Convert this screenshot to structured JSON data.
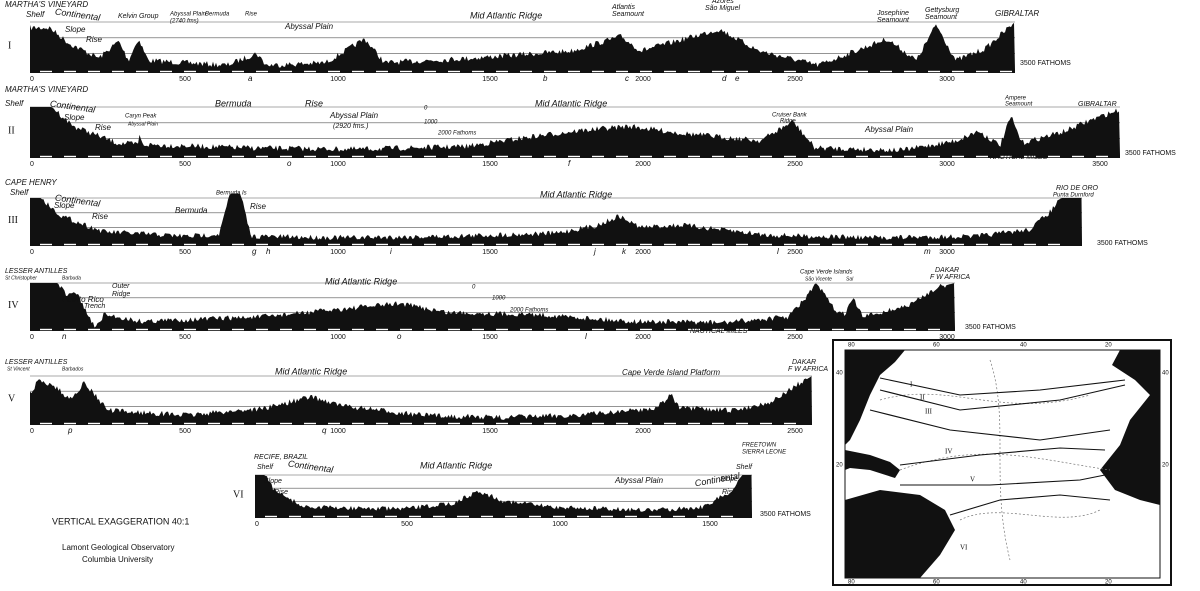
{
  "profiles": [
    {
      "numeral": "I",
      "labels": [
        "MARTHA'S VINEYARD",
        "Shelf",
        "Continental",
        "Slope",
        "Rise",
        "Kelvin Group",
        "Abyssal Plain",
        "(2740 fms)",
        "Bermuda",
        "Rise",
        "Abyssal Plain",
        "Mid Atlantic Ridge",
        "Atlantis",
        "Seamount",
        "Azores",
        "São Miguel",
        "Josephine",
        "Seamount",
        "Gettysburg",
        "Seamount",
        "GIBRALTAR"
      ],
      "scale": [
        "0",
        "500",
        "1000",
        "1500",
        "2000",
        "2500",
        "3000"
      ],
      "letters": [
        "a",
        "b",
        "c",
        "d",
        "e"
      ],
      "depth": "3500 FATHOMS"
    },
    {
      "numeral": "II",
      "labels": [
        "MARTHA'S VINEYARD",
        "Shelf",
        "Continental",
        "Slope",
        "Rise",
        "Caryn Peak",
        "Abyssal Plain",
        "Bermuda",
        "Rise",
        "Abyssal Plain",
        "(2920 fms.)",
        "0",
        "1000",
        "2000 Fathoms",
        "Mid Atlantic Ridge",
        "Cruiser Bank",
        "Ridge",
        "Ampere",
        "Seamount",
        "Abyssal Plain",
        "GIBRALTAR",
        "NAUTICAL MILES"
      ],
      "scale": [
        "0",
        "500",
        "1000",
        "1500",
        "2000",
        "2500",
        "3000",
        "3500"
      ],
      "letters": [
        "o",
        "f"
      ],
      "depth": "3500 FATHOMS"
    },
    {
      "numeral": "III",
      "labels": [
        "CAPE HENRY",
        "Shelf",
        "Continental",
        "Slope",
        "Rise",
        "Bermuda Is",
        "Bermuda",
        "Rise",
        "Mid Atlantic Ridge",
        "RIO DE ORO",
        "Punta Durnford"
      ],
      "scale": [
        "0",
        "500",
        "1000",
        "1500",
        "2000",
        "2500",
        "3000"
      ],
      "letters": [
        "g",
        "h",
        "i",
        "j",
        "k",
        "l",
        "m"
      ],
      "depth": "3500 FATHOMS"
    },
    {
      "numeral": "IV",
      "labels": [
        "LESSER ANTILLES",
        "St Christopher",
        "Barbuda",
        "Outer",
        "Ridge",
        "Puerto Rico",
        "Trench",
        "Mid Atlantic Ridge",
        "0",
        "1000",
        "2000 Fathoms",
        "Cape Verde Islands",
        "São Vicente",
        "Sal",
        "DAKAR",
        "F W AFRICA",
        "NAUTICAL MILES"
      ],
      "scale": [
        "0",
        "500",
        "1000",
        "1500",
        "2000",
        "2500",
        "3000"
      ],
      "letters": [
        "n",
        "o",
        "l"
      ],
      "depth": "3500 FATHOMS"
    },
    {
      "numeral": "V",
      "labels": [
        "LESSER ANTILLES",
        "St Vincent",
        "Barbados",
        "Mid Atlantic Ridge",
        "Cape Verde Island Platform",
        "DAKAR",
        "F W AFRICA"
      ],
      "scale": [
        "0",
        "500",
        "1000",
        "1500",
        "2000",
        "2500"
      ],
      "letters": [
        "p",
        "q"
      ],
      "depth": ""
    },
    {
      "numeral": "VI",
      "labels": [
        "RECIFE, BRAZIL",
        "Shelf",
        "Continental",
        "Slope",
        "Rise",
        "Mid Atlantic Ridge",
        "Abyssal Plain",
        "Continental",
        "Slope",
        "Rise",
        "FREETOWN",
        "SIERRA LEONE",
        "Shelf"
      ],
      "scale": [
        "0",
        "500",
        "1000",
        "1500"
      ],
      "letters": [],
      "depth": "3500 FATHOMS"
    }
  ],
  "legend": {
    "exaggeration": "VERTICAL EXAGGERATION 40:1",
    "institution": "Lamont Geological Observatory",
    "university": "Columbia University"
  },
  "map": {
    "top": [
      "80",
      "60",
      "40",
      "20"
    ],
    "bottom": [
      "80",
      "60",
      "40",
      "20"
    ],
    "left": [
      "40",
      "20"
    ],
    "right": [
      "40",
      "20"
    ],
    "routes": [
      "I",
      "II",
      "III",
      "IV",
      "V",
      "VI"
    ]
  }
}
